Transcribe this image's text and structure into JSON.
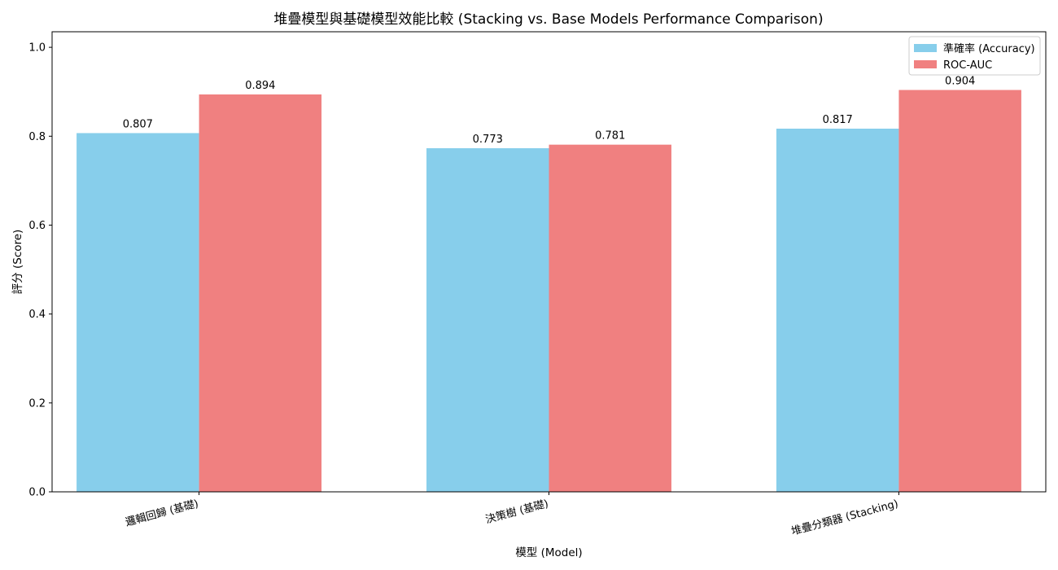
{
  "chart_data": {
    "type": "bar",
    "title": "堆疊模型與基礎模型效能比較 (Stacking vs. Base Models Performance Comparison)",
    "xlabel": "模型 (Model)",
    "ylabel": "評分 (Score)",
    "categories": [
      "邏輯回歸 (基礎)",
      "決策樹 (基礎)",
      "堆疊分類器 (Stacking)"
    ],
    "series": [
      {
        "name": "準確率 (Accuracy)",
        "color": "#87CEEB",
        "values": [
          0.807,
          0.773,
          0.817
        ],
        "labels": [
          "0.807",
          "0.773",
          "0.817"
        ]
      },
      {
        "name": "ROC-AUC",
        "color": "#F08080",
        "values": [
          0.894,
          0.781,
          0.904
        ],
        "labels": [
          "0.894",
          "0.781",
          "0.904"
        ]
      }
    ],
    "ylim": [
      0,
      1.035
    ],
    "yticks": [
      0.0,
      0.2,
      0.4,
      0.6,
      0.8,
      1.0
    ],
    "ytick_labels": [
      "0.0",
      "0.2",
      "0.4",
      "0.6",
      "0.8",
      "1.0"
    ],
    "grid": false,
    "legend_position": "top-right"
  }
}
